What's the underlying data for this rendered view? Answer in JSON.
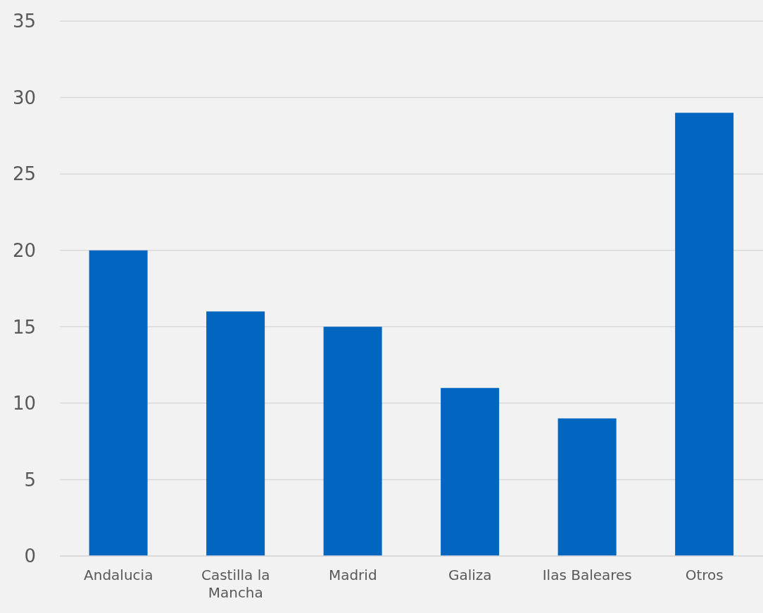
{
  "chart_data": {
    "type": "bar",
    "categories": [
      "Andalucia",
      "Castilla la Mancha",
      "Madrid",
      "Galiza",
      "Ilas Baleares",
      "Otros"
    ],
    "values": [
      20,
      16,
      15,
      11,
      9,
      29
    ],
    "color": "#0066c0",
    "ylim": [
      0,
      35
    ],
    "yticks": [
      0,
      5,
      10,
      15,
      20,
      25,
      30,
      35
    ],
    "grid": "y"
  }
}
